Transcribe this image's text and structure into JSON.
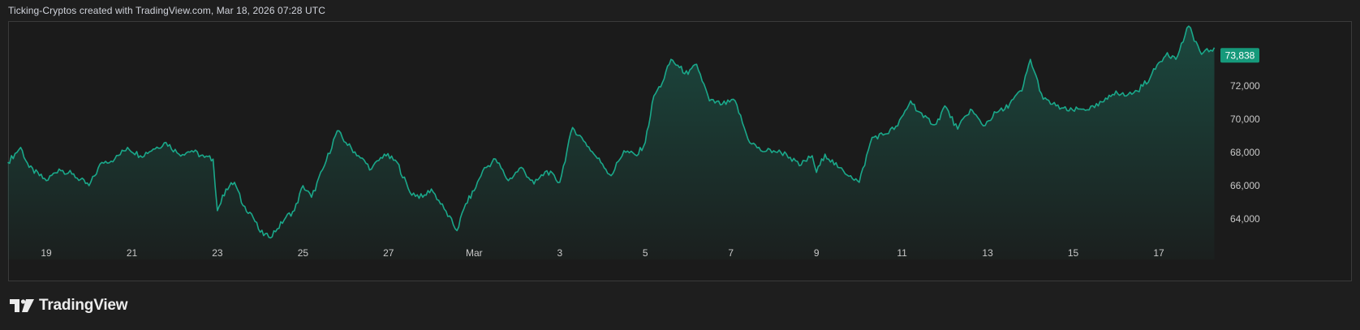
{
  "header": {
    "attribution": "Ticking-Cryptos created with TradingView.com, Mar 18, 2026 07:28 UTC"
  },
  "footer": {
    "brand": "TradingView"
  },
  "colors": {
    "line": "#1aa88a",
    "price_badge": "#16997b",
    "background": "#1e1e1e",
    "axis_text": "#c8c8c8"
  },
  "chart_data": {
    "type": "area",
    "title": "",
    "xlabel": "",
    "ylabel": "",
    "last_price_label": "73,838",
    "x_ticks": [
      "19",
      "21",
      "23",
      "25",
      "27",
      "Mar",
      "3",
      "5",
      "7",
      "9",
      "11",
      "13",
      "15",
      "17"
    ],
    "y_ticks": [
      "64,000",
      "66,000",
      "68,000",
      "70,000",
      "72,000"
    ],
    "y_tick_values": [
      64000,
      66000,
      68000,
      70000,
      72000
    ],
    "ylim": [
      62500,
      75500
    ],
    "xlim_days": [
      18.1,
      46.4
    ],
    "x_tick_days": [
      19,
      21,
      23,
      25,
      27,
      29,
      31,
      33,
      35,
      37,
      39,
      41,
      43,
      45
    ],
    "grid": false,
    "series": [
      {
        "x_days": [
          18.1,
          18.4,
          18.6,
          19.0,
          19.3,
          19.6,
          20.0,
          20.3,
          20.6,
          20.9,
          21.2,
          21.5,
          21.8,
          22.1,
          22.4,
          22.7,
          22.9,
          23.0,
          23.2,
          23.4,
          23.6,
          23.8,
          24.0,
          24.2,
          24.4,
          24.6,
          24.8,
          25.0,
          25.2,
          25.5,
          25.8,
          26.0,
          26.3,
          26.6,
          26.9,
          27.2,
          27.5,
          27.8,
          28.0,
          28.3,
          28.6,
          28.8,
          29.0,
          29.2,
          29.5,
          29.8,
          30.1,
          30.4,
          30.7,
          31.0,
          31.3,
          31.6,
          31.8,
          32.0,
          32.2,
          32.5,
          32.8,
          33.0,
          33.2,
          33.4,
          33.6,
          33.8,
          34.0,
          34.2,
          34.5,
          34.8,
          35.1,
          35.4,
          35.7,
          36.0,
          36.3,
          36.6,
          36.9,
          37.0,
          37.2,
          37.5,
          37.8,
          38.0,
          38.3,
          38.6,
          38.9,
          39.2,
          39.5,
          39.8,
          40.0,
          40.3,
          40.6,
          40.9,
          41.2,
          41.4,
          41.6,
          41.8,
          42.0,
          42.3,
          42.6,
          42.9,
          43.2,
          43.5,
          43.8,
          44.0,
          44.2,
          44.5,
          44.8,
          45.0,
          45.2,
          45.4,
          45.7,
          46.0,
          46.3
        ],
        "values": [
          67400,
          68300,
          67100,
          66300,
          67000,
          66700,
          66000,
          67400,
          67600,
          68300,
          67800,
          68200,
          68600,
          67900,
          68100,
          67700,
          67600,
          64500,
          65800,
          66200,
          64800,
          64300,
          63200,
          62900,
          63400,
          64100,
          64500,
          66000,
          65300,
          67200,
          69300,
          68600,
          67800,
          67000,
          67900,
          67400,
          65600,
          65300,
          65800,
          64600,
          63300,
          64900,
          65700,
          66900,
          67600,
          66300,
          67100,
          66100,
          66900,
          66200,
          69500,
          68600,
          67900,
          67300,
          66600,
          68100,
          67800,
          68600,
          71400,
          72200,
          73600,
          73100,
          72700,
          73300,
          71100,
          70900,
          71100,
          68800,
          68100,
          68100,
          67900,
          67200,
          67800,
          66800,
          67900,
          67100,
          66600,
          66200,
          68900,
          69100,
          69600,
          71100,
          70100,
          69700,
          70800,
          69400,
          70600,
          69600,
          70400,
          70600,
          71200,
          71700,
          73600,
          71200,
          70800,
          70500,
          70600,
          70700,
          71200,
          71700,
          71400,
          71700,
          72500,
          73400,
          74000,
          73600,
          75600,
          73900,
          74300
        ]
      }
    ]
  }
}
